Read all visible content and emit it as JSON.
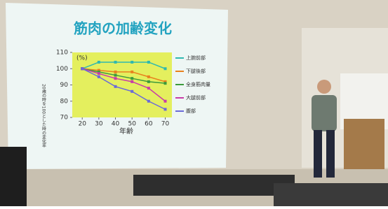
{
  "chart_data": {
    "type": "line",
    "title": "筋肉の加齢変化",
    "y_label": "20歳の時を100とした時の変化率",
    "unit_note": "(%)",
    "x_label": "年齢",
    "x": [
      20,
      30,
      40,
      50,
      60,
      70
    ],
    "xlim": [
      14,
      74
    ],
    "xticks": [
      20,
      30,
      40,
      50,
      60,
      70
    ],
    "ylim": [
      70,
      110
    ],
    "yticks": [
      70,
      80,
      90,
      100,
      110
    ],
    "plot_color": "#e4ef5e",
    "series": [
      {
        "name": "上腕前部",
        "color": "#2fb8b0",
        "values": [
          100,
          104,
          104,
          104,
          104,
          100
        ]
      },
      {
        "name": "下腿後部",
        "color": "#e8821e",
        "values": [
          100,
          99,
          98,
          98,
          95,
          92
        ]
      },
      {
        "name": "全身筋肉量",
        "color": "#3c9a3c",
        "values": [
          100,
          98,
          96,
          94,
          92,
          91
        ]
      },
      {
        "name": "大腿前部",
        "color": "#c83ca8",
        "values": [
          100,
          97,
          94,
          92,
          88,
          80
        ]
      },
      {
        "name": "腹部",
        "color": "#6a6ad8",
        "values": [
          100,
          95,
          89,
          86,
          80,
          75
        ]
      }
    ]
  }
}
